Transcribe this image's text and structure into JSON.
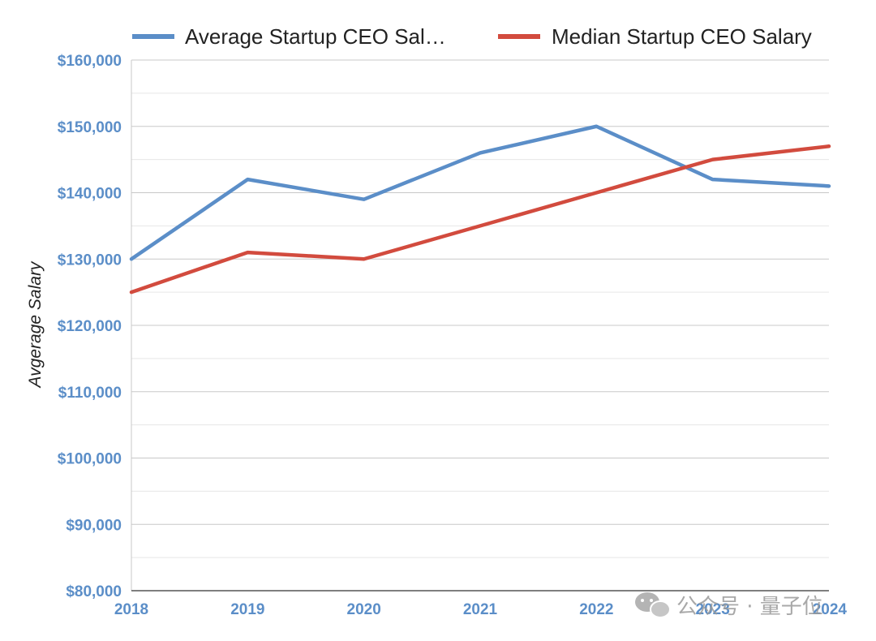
{
  "chart_data": {
    "type": "line",
    "categories": [
      "2018",
      "2019",
      "2020",
      "2021",
      "2022",
      "2023",
      "2024"
    ],
    "series": [
      {
        "name": "Average Startup CEO Sal…",
        "color": "#5b8ec8",
        "values": [
          130000,
          142000,
          139000,
          146000,
          150000,
          142000,
          141000
        ]
      },
      {
        "name": "Median Startup CEO Salary",
        "color": "#d24b3e",
        "values": [
          125000,
          131000,
          130000,
          135000,
          140000,
          145000,
          147000
        ]
      }
    ],
    "ylabel": "Avgerage Salary",
    "xlabel": "",
    "ylim": [
      80000,
      160000
    ],
    "y_ticks": [
      "$160,000",
      "$150,000",
      "$140,000",
      "$130,000",
      "$120,000",
      "$110,000",
      "$100,000",
      "$90,000",
      "$80,000"
    ],
    "y_tick_values": [
      160000,
      150000,
      140000,
      130000,
      120000,
      110000,
      100000,
      90000,
      80000
    ],
    "tick_color": "#5b8ec8",
    "grid": true,
    "legend_position": "top"
  },
  "watermark": {
    "text": "公众号 · 量子位",
    "icon": "wechat-icon"
  }
}
